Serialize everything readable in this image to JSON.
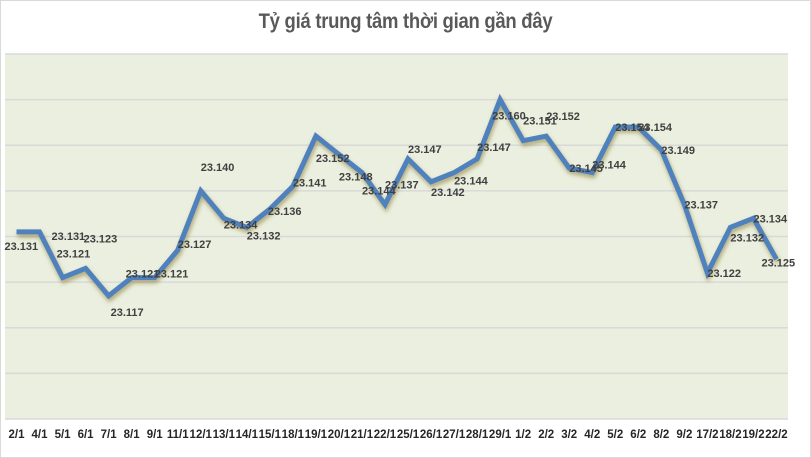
{
  "chart_data": {
    "type": "line",
    "title": "Tỷ giá trung tâm thời gian gần đây",
    "xlabel": "",
    "ylabel": "",
    "ylim": [
      23.09,
      23.17
    ],
    "y_gridline_step": 0.01,
    "grid": true,
    "legend": null,
    "categories": [
      "2/1",
      "4/1",
      "5/1",
      "6/1",
      "7/1",
      "8/1",
      "9/1",
      "11/1",
      "12/1",
      "13/1",
      "14/1",
      "15/1",
      "18/1",
      "19/1",
      "20/1",
      "21/1",
      "22/1",
      "25/1",
      "26/1",
      "27/1",
      "28/1",
      "29/1",
      "1/2",
      "2/2",
      "3/2",
      "4/2",
      "5/2",
      "6/2",
      "8/2",
      "9/2",
      "17/2",
      "18/2",
      "19/2",
      "22/2"
    ],
    "series": [
      {
        "name": "Tỷ giá trung tâm",
        "color": "#4f81bd",
        "values": [
          23.131,
          23.131,
          23.121,
          23.123,
          23.117,
          23.121,
          23.121,
          23.127,
          23.14,
          23.134,
          23.132,
          23.136,
          23.141,
          23.152,
          23.148,
          23.144,
          23.137,
          23.147,
          23.142,
          23.144,
          23.147,
          23.16,
          23.151,
          23.152,
          23.145,
          23.144,
          23.154,
          23.154,
          23.149,
          23.137,
          23.122,
          23.132,
          23.134,
          23.125
        ],
        "data_labels": [
          "23.131",
          "23.131",
          "23.121",
          "23.123",
          "23.117",
          "23.121",
          "23.121",
          "23.127",
          "23.140",
          "23.134",
          "23.132",
          "23.136",
          "23.141",
          "23.152",
          "23.148",
          "23.144",
          "23.137",
          "23.147",
          "23.142",
          "23.144",
          "23.147",
          "23.160",
          "23.151",
          "23.152",
          "23.145",
          "23.144",
          "23.154",
          "23.154",
          "23.149",
          "23.137",
          "23.122",
          "23.132",
          "23.134",
          "23.125"
        ]
      }
    ]
  },
  "colors": {
    "plot_background": "#ebefdf",
    "gridline": "#d9d9d9",
    "line": "#4f81bd",
    "title": "#595959",
    "tick_text": "#262626",
    "label_text": "#404040"
  }
}
